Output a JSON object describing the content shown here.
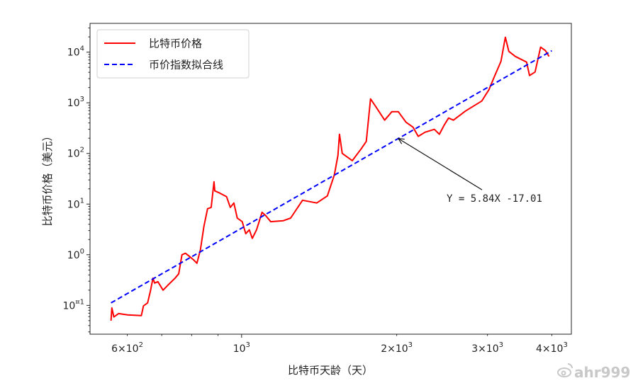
{
  "chart_data": {
    "type": "line",
    "title": "",
    "xlabel": "比特币天龄（天）",
    "ylabel": "比特币价格（美元）",
    "xscale": "log",
    "yscale": "log",
    "xlim": [
      508,
      4365
    ],
    "ylim": [
      0.027,
      37000
    ],
    "grid": false,
    "legend_position": "top-left",
    "x_ticks": [
      {
        "value": 600,
        "base": "6×10",
        "exp": "2"
      },
      {
        "value": 1000,
        "base": "10",
        "exp": "3"
      },
      {
        "value": 2000,
        "base": "2×10",
        "exp": "3"
      },
      {
        "value": 3000,
        "base": "3×10",
        "exp": "3"
      },
      {
        "value": 4000,
        "base": "4×10",
        "exp": "3"
      }
    ],
    "y_ticks": [
      {
        "value": 0.1,
        "base": "10",
        "exp": "¤1"
      },
      {
        "value": 1,
        "base": "10",
        "exp": "0"
      },
      {
        "value": 10,
        "base": "10",
        "exp": "1"
      },
      {
        "value": 100,
        "base": "10",
        "exp": "2"
      },
      {
        "value": 1000,
        "base": "10",
        "exp": "3"
      },
      {
        "value": 10000,
        "base": "10",
        "exp": "4"
      }
    ],
    "series": [
      {
        "name": "比特币价格",
        "color": "#ff0000",
        "style": "solid",
        "points": [
          [
            558,
            0.05
          ],
          [
            560,
            0.089
          ],
          [
            565,
            0.059
          ],
          [
            577,
            0.069
          ],
          [
            601,
            0.065
          ],
          [
            639,
            0.063
          ],
          [
            645,
            0.098
          ],
          [
            657,
            0.112
          ],
          [
            665,
            0.187
          ],
          [
            673,
            0.345
          ],
          [
            678,
            0.276
          ],
          [
            688,
            0.294
          ],
          [
            704,
            0.2
          ],
          [
            719,
            0.25
          ],
          [
            743,
            0.345
          ],
          [
            755,
            0.42
          ],
          [
            766,
            1.0
          ],
          [
            778,
            1.07
          ],
          [
            794,
            0.91
          ],
          [
            806,
            0.8
          ],
          [
            819,
            0.68
          ],
          [
            832,
            1.25
          ],
          [
            845,
            3.6
          ],
          [
            859,
            8.1
          ],
          [
            873,
            8.6
          ],
          [
            884,
            27.6
          ],
          [
            887,
            18.2
          ],
          [
            907,
            16.5
          ],
          [
            935,
            14.0
          ],
          [
            951,
            8.6
          ],
          [
            966,
            10.5
          ],
          [
            981,
            5.3
          ],
          [
            1003,
            4.5
          ],
          [
            1019,
            2.6
          ],
          [
            1035,
            3.1
          ],
          [
            1049,
            2.1
          ],
          [
            1069,
            3.1
          ],
          [
            1096,
            6.9
          ],
          [
            1114,
            5.9
          ],
          [
            1139,
            4.5
          ],
          [
            1205,
            4.7
          ],
          [
            1245,
            5.3
          ],
          [
            1313,
            11.9
          ],
          [
            1399,
            10.5
          ],
          [
            1467,
            14.5
          ],
          [
            1514,
            38
          ],
          [
            1538,
            91
          ],
          [
            1549,
            239
          ],
          [
            1568,
            100
          ],
          [
            1640,
            72
          ],
          [
            1708,
            125
          ],
          [
            1746,
            173
          ],
          [
            1779,
            1194
          ],
          [
            1818,
            865
          ],
          [
            1895,
            454
          ],
          [
            1958,
            668
          ],
          [
            2014,
            668
          ],
          [
            2085,
            412
          ],
          [
            2152,
            329
          ],
          [
            2202,
            217
          ],
          [
            2271,
            263
          ],
          [
            2366,
            299
          ],
          [
            2420,
            239
          ],
          [
            2473,
            362
          ],
          [
            2522,
            500
          ],
          [
            2577,
            454
          ],
          [
            2721,
            690
          ],
          [
            2925,
            1084
          ],
          [
            3020,
            1815
          ],
          [
            3089,
            3140
          ],
          [
            3187,
            6580
          ],
          [
            3250,
            19660
          ],
          [
            3301,
            10330
          ],
          [
            3397,
            8240
          ],
          [
            3573,
            6370
          ],
          [
            3621,
            3450
          ],
          [
            3711,
            4060
          ],
          [
            3804,
            12530
          ],
          [
            3888,
            10670
          ],
          [
            3950,
            8240
          ]
        ]
      },
      {
        "name": "币价指数拟合线",
        "color": "#0000ff",
        "style": "dashed",
        "points": [
          [
            558,
            0.112
          ],
          [
            4000,
            10670
          ]
        ]
      }
    ],
    "annotation": {
      "text": "Y = 5.84X -17.01",
      "arrow_target": [
        2014,
        197
      ],
      "text_position": [
        2500,
        13
      ]
    }
  },
  "watermark": "ahr999"
}
